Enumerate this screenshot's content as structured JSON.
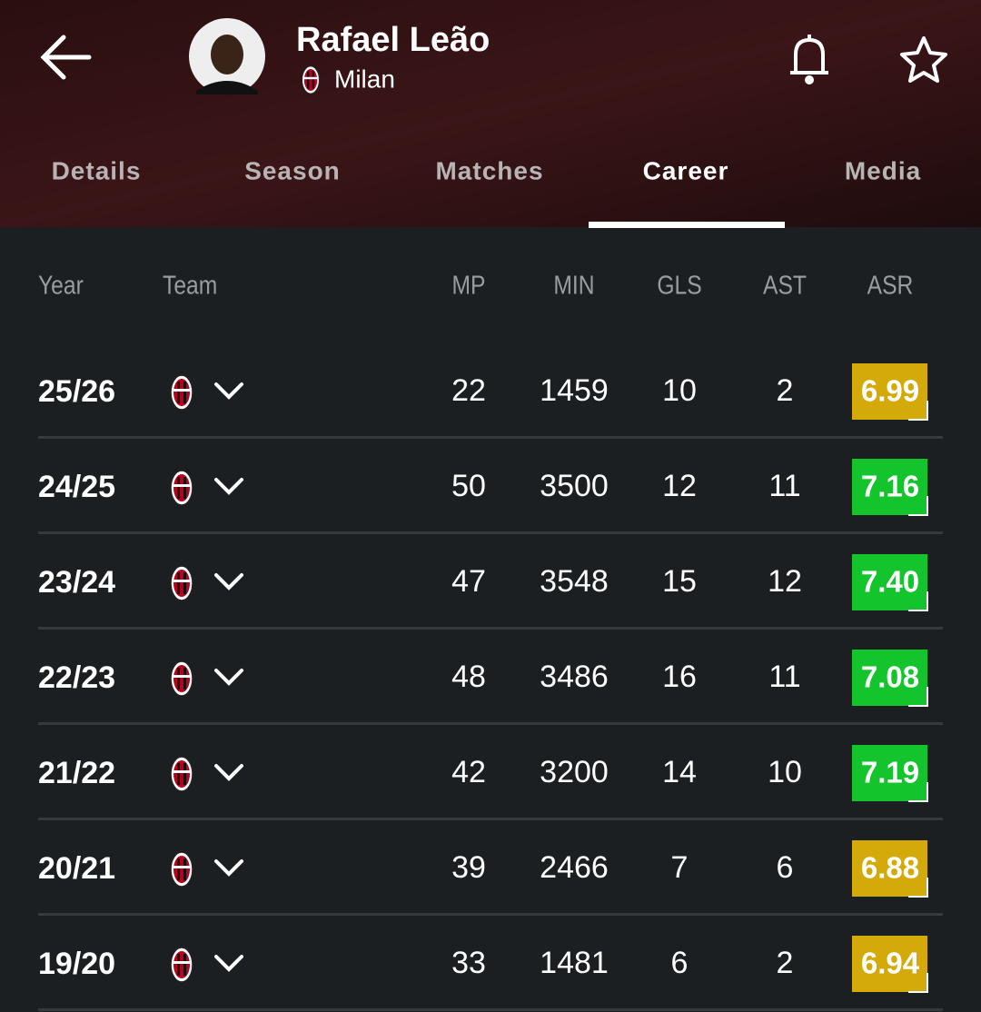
{
  "header": {
    "player_name": "Rafael Leão",
    "team": "Milan"
  },
  "tabs": [
    "Details",
    "Season",
    "Matches",
    "Career",
    "Media"
  ],
  "active_tab": "Career",
  "table": {
    "columns": [
      "Year",
      "Team",
      "MP",
      "MIN",
      "GLS",
      "AST",
      "ASR"
    ],
    "rows": [
      {
        "year": "25/26",
        "mp": 22,
        "min": 1459,
        "gls": 10,
        "ast": 2,
        "asr": "6.99",
        "asr_color": "#d4a90a"
      },
      {
        "year": "24/25",
        "mp": 50,
        "min": 3500,
        "gls": 12,
        "ast": 11,
        "asr": "7.16",
        "asr_color": "#14c42c"
      },
      {
        "year": "23/24",
        "mp": 47,
        "min": 3548,
        "gls": 15,
        "ast": 12,
        "asr": "7.40",
        "asr_color": "#14c42c"
      },
      {
        "year": "22/23",
        "mp": 48,
        "min": 3486,
        "gls": 16,
        "ast": 11,
        "asr": "7.08",
        "asr_color": "#14c42c"
      },
      {
        "year": "21/22",
        "mp": 42,
        "min": 3200,
        "gls": 14,
        "ast": 10,
        "asr": "7.19",
        "asr_color": "#14c42c"
      },
      {
        "year": "20/21",
        "mp": 39,
        "min": 2466,
        "gls": 7,
        "ast": 6,
        "asr": "6.88",
        "asr_color": "#d4a90a"
      },
      {
        "year": "19/20",
        "mp": 33,
        "min": 1481,
        "gls": 6,
        "ast": 2,
        "asr": "6.94",
        "asr_color": "#d4a90a"
      }
    ]
  }
}
